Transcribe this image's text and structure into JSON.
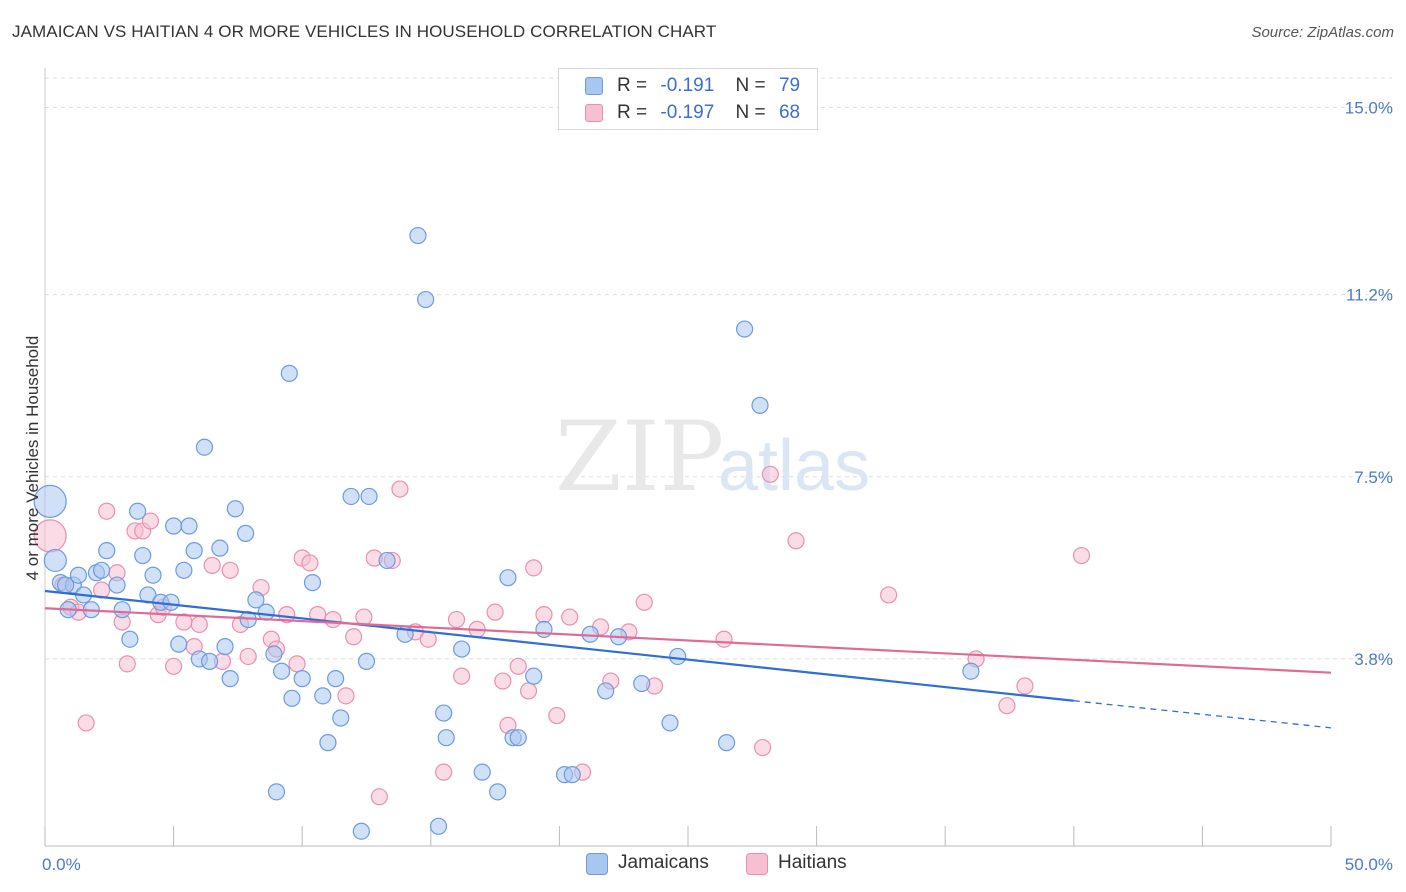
{
  "header": {
    "title": "JAMAICAN VS HAITIAN 4 OR MORE VEHICLES IN HOUSEHOLD CORRELATION CHART",
    "source": "Source: ZipAtlas.com"
  },
  "watermark": {
    "part1": "ZIP",
    "part2": "atlas"
  },
  "legend": {
    "jamaicans": {
      "r_label": "R =",
      "r_value": "-0.191",
      "n_label": "N =",
      "n_value": "79"
    },
    "haitians": {
      "r_label": "R =",
      "r_value": "-0.197",
      "n_label": "N =",
      "n_value": "68"
    }
  },
  "bottom_legend": {
    "jamaicans": "Jamaicans",
    "haitians": "Haitians"
  },
  "colors": {
    "jamaicans_fill": "#a9c6ef",
    "jamaicans_stroke": "#6c9be0",
    "jamaicans_line": "#2e6fd1",
    "haitians_fill": "#f6bfd2",
    "haitians_stroke": "#ea8fb0",
    "haitians_line": "#e06a96",
    "tick_label": "#4a7bc8",
    "grid": "#dddddd"
  },
  "chart_data": {
    "type": "scatter",
    "xlabel": "",
    "ylabel": "4 or more Vehicles in Household",
    "xlim": [
      0,
      50
    ],
    "ylim": [
      0,
      15.6
    ],
    "x_tick_labels": [
      {
        "value": 0,
        "label": "0.0%"
      },
      {
        "value": 50,
        "label": "50.0%"
      }
    ],
    "y_tick_labels": [
      {
        "value": 3.8,
        "label": "3.8%"
      },
      {
        "value": 7.5,
        "label": "7.5%"
      },
      {
        "value": 11.2,
        "label": "11.2%"
      },
      {
        "value": 15.0,
        "label": "15.0%"
      }
    ],
    "y_gridlines": [
      3.8,
      7.5,
      11.2,
      15.0
    ],
    "x_minor_ticks": [
      0,
      5,
      10,
      15,
      20,
      25,
      30,
      35,
      40,
      45,
      50
    ],
    "grid": "horizontal dashed",
    "legend_position": "top-center",
    "series": [
      {
        "name": "Jamaicans",
        "color": "#a9c6ef",
        "trend": {
          "x0": 0,
          "y0": 5.18,
          "x1": 40,
          "y1": 2.95,
          "dashed_to_x": 50,
          "dashed_to_y": 2.4
        },
        "points": [
          [
            0.2,
            7.0,
            16
          ],
          [
            0.4,
            5.8,
            11
          ],
          [
            0.6,
            5.35,
            8
          ],
          [
            0.9,
            4.8,
            8
          ],
          [
            1.1,
            5.3,
            8
          ],
          [
            1.3,
            5.5,
            8
          ],
          [
            1.5,
            5.1,
            8
          ],
          [
            1.8,
            4.8,
            8
          ],
          [
            2.0,
            5.55,
            8
          ],
          [
            2.2,
            5.6,
            8
          ],
          [
            2.4,
            6.0,
            8
          ],
          [
            2.8,
            5.3,
            8
          ],
          [
            3.0,
            4.8,
            8
          ],
          [
            3.3,
            4.2,
            8
          ],
          [
            3.6,
            6.8,
            8
          ],
          [
            3.8,
            5.9,
            8
          ],
          [
            4.0,
            5.1,
            8
          ],
          [
            4.2,
            5.5,
            8
          ],
          [
            4.5,
            4.95,
            8
          ],
          [
            4.9,
            4.95,
            8
          ],
          [
            5.0,
            6.5,
            8
          ],
          [
            5.2,
            4.1,
            8
          ],
          [
            5.4,
            5.6,
            8
          ],
          [
            5.6,
            6.5,
            8
          ],
          [
            5.8,
            6.0,
            8
          ],
          [
            6.0,
            3.8,
            8
          ],
          [
            6.2,
            8.1,
            8
          ],
          [
            6.4,
            3.75,
            8
          ],
          [
            6.8,
            6.05,
            8
          ],
          [
            7.0,
            4.05,
            8
          ],
          [
            7.2,
            3.4,
            8
          ],
          [
            7.4,
            6.85,
            8
          ],
          [
            7.8,
            6.35,
            8
          ],
          [
            7.9,
            4.6,
            8
          ],
          [
            8.2,
            5.0,
            8
          ],
          [
            8.6,
            4.75,
            8
          ],
          [
            8.9,
            3.9,
            8
          ],
          [
            9.0,
            1.1,
            8
          ],
          [
            9.2,
            3.55,
            8
          ],
          [
            9.5,
            9.6,
            8
          ],
          [
            9.6,
            3.0,
            8
          ],
          [
            10.0,
            3.4,
            8
          ],
          [
            10.4,
            5.35,
            8
          ],
          [
            10.8,
            3.05,
            8
          ],
          [
            11.0,
            2.1,
            8
          ],
          [
            11.3,
            3.4,
            8
          ],
          [
            11.5,
            2.6,
            8
          ],
          [
            11.9,
            7.1,
            8
          ],
          [
            12.3,
            0.3,
            8
          ],
          [
            12.5,
            3.75,
            8
          ],
          [
            12.6,
            7.1,
            8
          ],
          [
            13.3,
            5.8,
            8
          ],
          [
            14.0,
            4.3,
            8
          ],
          [
            14.5,
            12.4,
            8
          ],
          [
            14.8,
            11.1,
            8
          ],
          [
            15.3,
            0.4,
            8
          ],
          [
            15.5,
            2.7,
            8
          ],
          [
            15.6,
            2.2,
            8
          ],
          [
            16.2,
            4.0,
            8
          ],
          [
            17.0,
            1.5,
            8
          ],
          [
            17.6,
            1.1,
            8
          ],
          [
            18.0,
            5.45,
            8
          ],
          [
            18.2,
            2.2,
            8
          ],
          [
            18.4,
            2.2,
            8
          ],
          [
            19.0,
            3.45,
            8
          ],
          [
            19.4,
            4.4,
            8
          ],
          [
            20.2,
            1.45,
            8
          ],
          [
            20.5,
            1.45,
            8
          ],
          [
            21.2,
            4.3,
            8
          ],
          [
            21.8,
            3.15,
            8
          ],
          [
            22.3,
            4.25,
            8
          ],
          [
            23.2,
            3.3,
            8
          ],
          [
            24.3,
            2.5,
            8
          ],
          [
            24.6,
            3.85,
            8
          ],
          [
            26.5,
            2.1,
            8
          ],
          [
            27.2,
            10.5,
            8
          ],
          [
            27.8,
            8.95,
            8
          ],
          [
            36.0,
            3.55,
            8
          ],
          [
            0.8,
            5.3,
            8
          ]
        ]
      },
      {
        "name": "Haitians",
        "color": "#f6bfd2",
        "trend": {
          "x0": 0,
          "y0": 4.83,
          "x1": 50,
          "y1": 3.52
        },
        "points": [
          [
            0.2,
            6.3,
            16
          ],
          [
            0.7,
            5.3,
            8
          ],
          [
            1.0,
            4.85,
            8
          ],
          [
            1.3,
            4.75,
            8
          ],
          [
            1.6,
            2.5,
            8
          ],
          [
            2.2,
            5.2,
            8
          ],
          [
            2.4,
            6.8,
            8
          ],
          [
            2.8,
            5.55,
            8
          ],
          [
            3.0,
            4.55,
            8
          ],
          [
            3.2,
            3.7,
            8
          ],
          [
            3.5,
            6.4,
            8
          ],
          [
            3.8,
            6.4,
            8
          ],
          [
            4.1,
            6.6,
            8
          ],
          [
            4.4,
            4.7,
            8
          ],
          [
            4.6,
            4.85,
            8
          ],
          [
            5.0,
            3.65,
            8
          ],
          [
            5.4,
            4.55,
            8
          ],
          [
            5.8,
            4.05,
            8
          ],
          [
            6.0,
            4.5,
            8
          ],
          [
            6.5,
            5.7,
            8
          ],
          [
            6.9,
            3.75,
            8
          ],
          [
            7.2,
            5.6,
            8
          ],
          [
            7.6,
            4.5,
            8
          ],
          [
            7.9,
            3.85,
            8
          ],
          [
            8.4,
            5.25,
            8
          ],
          [
            8.8,
            4.2,
            8
          ],
          [
            9.0,
            4.0,
            8
          ],
          [
            9.4,
            4.7,
            8
          ],
          [
            9.8,
            3.7,
            8
          ],
          [
            10.0,
            5.85,
            8
          ],
          [
            10.3,
            5.75,
            8
          ],
          [
            10.6,
            4.7,
            8
          ],
          [
            11.2,
            4.6,
            8
          ],
          [
            11.7,
            3.05,
            8
          ],
          [
            12.0,
            4.25,
            8
          ],
          [
            12.4,
            4.65,
            8
          ],
          [
            12.8,
            5.85,
            8
          ],
          [
            13.0,
            1.0,
            8
          ],
          [
            13.5,
            5.8,
            8
          ],
          [
            13.8,
            7.25,
            8
          ],
          [
            14.4,
            4.35,
            8
          ],
          [
            14.9,
            4.2,
            8
          ],
          [
            15.5,
            1.5,
            8
          ],
          [
            16.0,
            4.6,
            8
          ],
          [
            16.2,
            3.45,
            8
          ],
          [
            16.8,
            4.4,
            8
          ],
          [
            17.5,
            4.75,
            8
          ],
          [
            17.8,
            3.35,
            8
          ],
          [
            18.0,
            2.45,
            8
          ],
          [
            18.4,
            3.65,
            8
          ],
          [
            18.8,
            3.15,
            8
          ],
          [
            19.0,
            5.65,
            8
          ],
          [
            19.4,
            4.7,
            8
          ],
          [
            19.9,
            2.65,
            8
          ],
          [
            20.4,
            4.65,
            8
          ],
          [
            20.9,
            1.5,
            8
          ],
          [
            21.6,
            4.45,
            8
          ],
          [
            22.0,
            3.35,
            8
          ],
          [
            22.7,
            4.35,
            8
          ],
          [
            23.3,
            4.95,
            8
          ],
          [
            23.7,
            3.25,
            8
          ],
          [
            26.4,
            4.2,
            8
          ],
          [
            27.9,
            2.0,
            8
          ],
          [
            28.2,
            7.55,
            8
          ],
          [
            29.2,
            6.2,
            8
          ],
          [
            32.8,
            5.1,
            8
          ],
          [
            36.2,
            3.8,
            8
          ],
          [
            37.4,
            2.85,
            8
          ]
        ]
      }
    ],
    "extra_haitians_points": [
      [
        38.1,
        3.25,
        8
      ],
      [
        40.3,
        5.9,
        8
      ]
    ]
  }
}
